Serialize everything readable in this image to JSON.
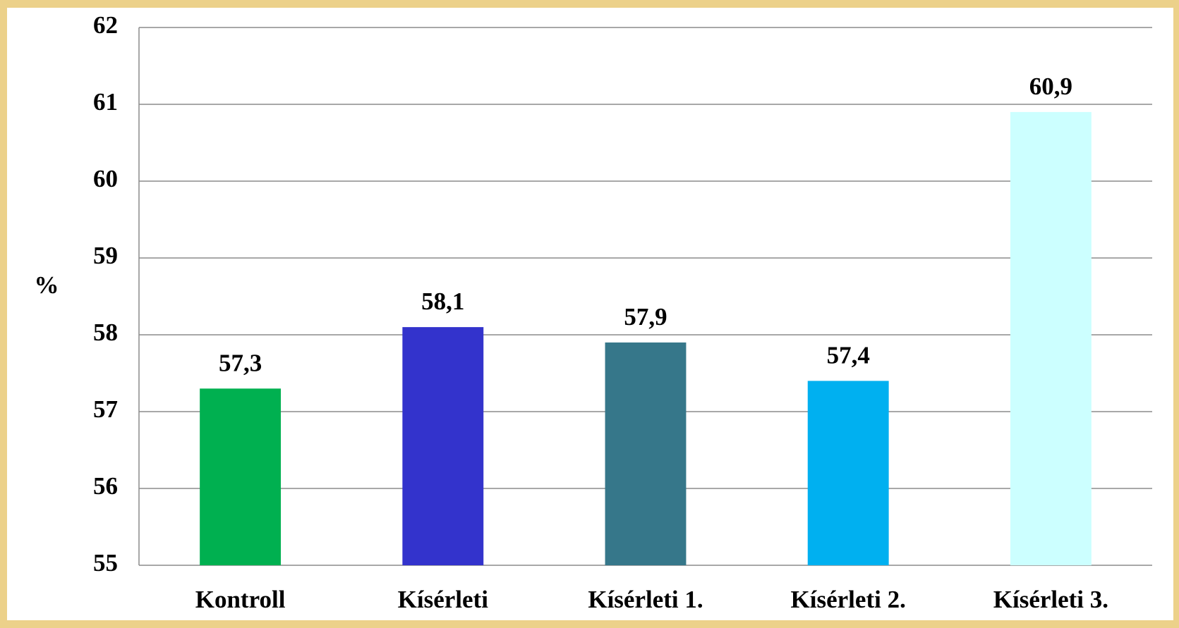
{
  "chart_data": {
    "type": "bar",
    "ylabel": "%",
    "categories": [
      "Kontroll",
      "Kísérleti",
      "Kísérleti 1.",
      "Kísérleti 2.",
      "Kísérleti 3."
    ],
    "values": [
      57.3,
      58.1,
      57.9,
      57.4,
      60.9
    ],
    "value_labels": [
      "57,3",
      "58,1",
      "57,9",
      "57,4",
      "60,9"
    ],
    "colors": [
      "#00b050",
      "#3333cc",
      "#36778a",
      "#00b0f0",
      "#ccffff"
    ],
    "ylim": [
      55,
      62
    ],
    "yticks": [
      55,
      56,
      57,
      58,
      59,
      60,
      61,
      62
    ],
    "grid": true
  }
}
